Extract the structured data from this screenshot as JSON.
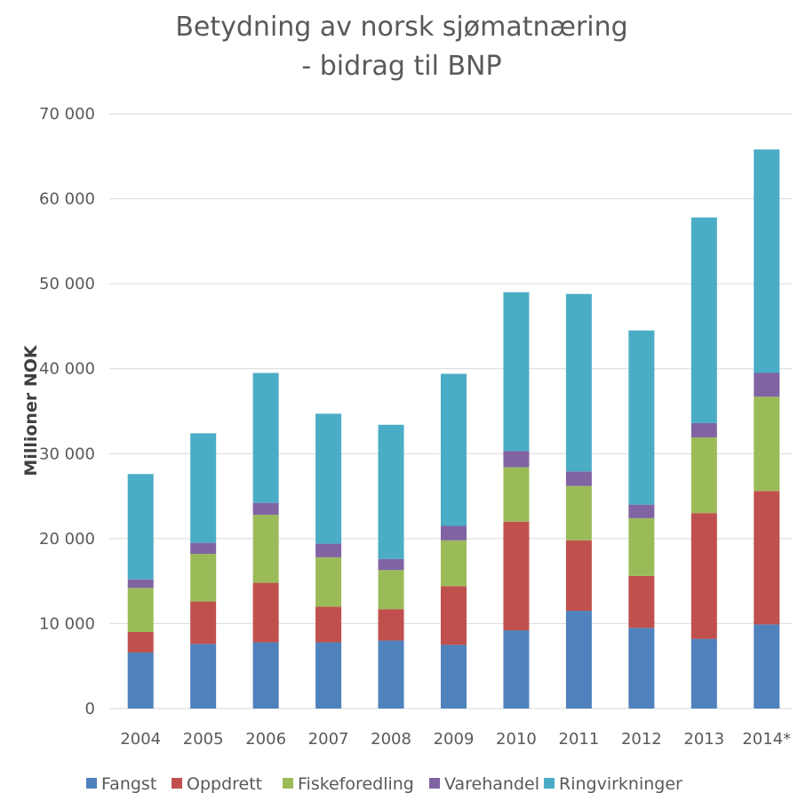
{
  "chart_data": {
    "type": "bar",
    "stacked": true,
    "title": "Betydning av norsk sjømatnæring",
    "subtitle": "- bidrag til BNP",
    "xlabel": "",
    "ylabel": "Millioner NOK",
    "ylim": [
      0,
      70000
    ],
    "yticks": [
      0,
      10000,
      20000,
      30000,
      40000,
      50000,
      60000,
      70000
    ],
    "ytick_labels": [
      "0",
      "10 000",
      "20 000",
      "30 000",
      "40 000",
      "50 000",
      "60 000",
      "70 000"
    ],
    "grid": true,
    "legend_position": "bottom",
    "categories": [
      "2004",
      "2005",
      "2006",
      "2007",
      "2008",
      "2009",
      "2010",
      "2011",
      "2012",
      "2013",
      "2014*"
    ],
    "series": [
      {
        "name": "Fangst",
        "color": "#4f81bd",
        "values": [
          6600,
          7600,
          7800,
          7800,
          8000,
          7500,
          9200,
          11500,
          9500,
          8200,
          9900
        ]
      },
      {
        "name": "Oppdrett",
        "color": "#c0504d",
        "values": [
          2400,
          5000,
          7000,
          4200,
          3700,
          6900,
          12800,
          8300,
          6100,
          14800,
          15700
        ]
      },
      {
        "name": "Fiskeforedling",
        "color": "#9bbb59",
        "values": [
          5200,
          5600,
          8000,
          5800,
          4600,
          5400,
          6400,
          6400,
          6800,
          8900,
          11100
        ]
      },
      {
        "name": "Varehandel",
        "color": "#8064a2",
        "values": [
          1000,
          1300,
          1400,
          1600,
          1300,
          1700,
          1900,
          1700,
          1600,
          1700,
          2800
        ]
      },
      {
        "name": "Ringvirkninger",
        "color": "#4bacc6",
        "values": [
          12400,
          12900,
          15300,
          15300,
          15800,
          17900,
          18700,
          20900,
          20500,
          24200,
          26300
        ]
      }
    ]
  }
}
